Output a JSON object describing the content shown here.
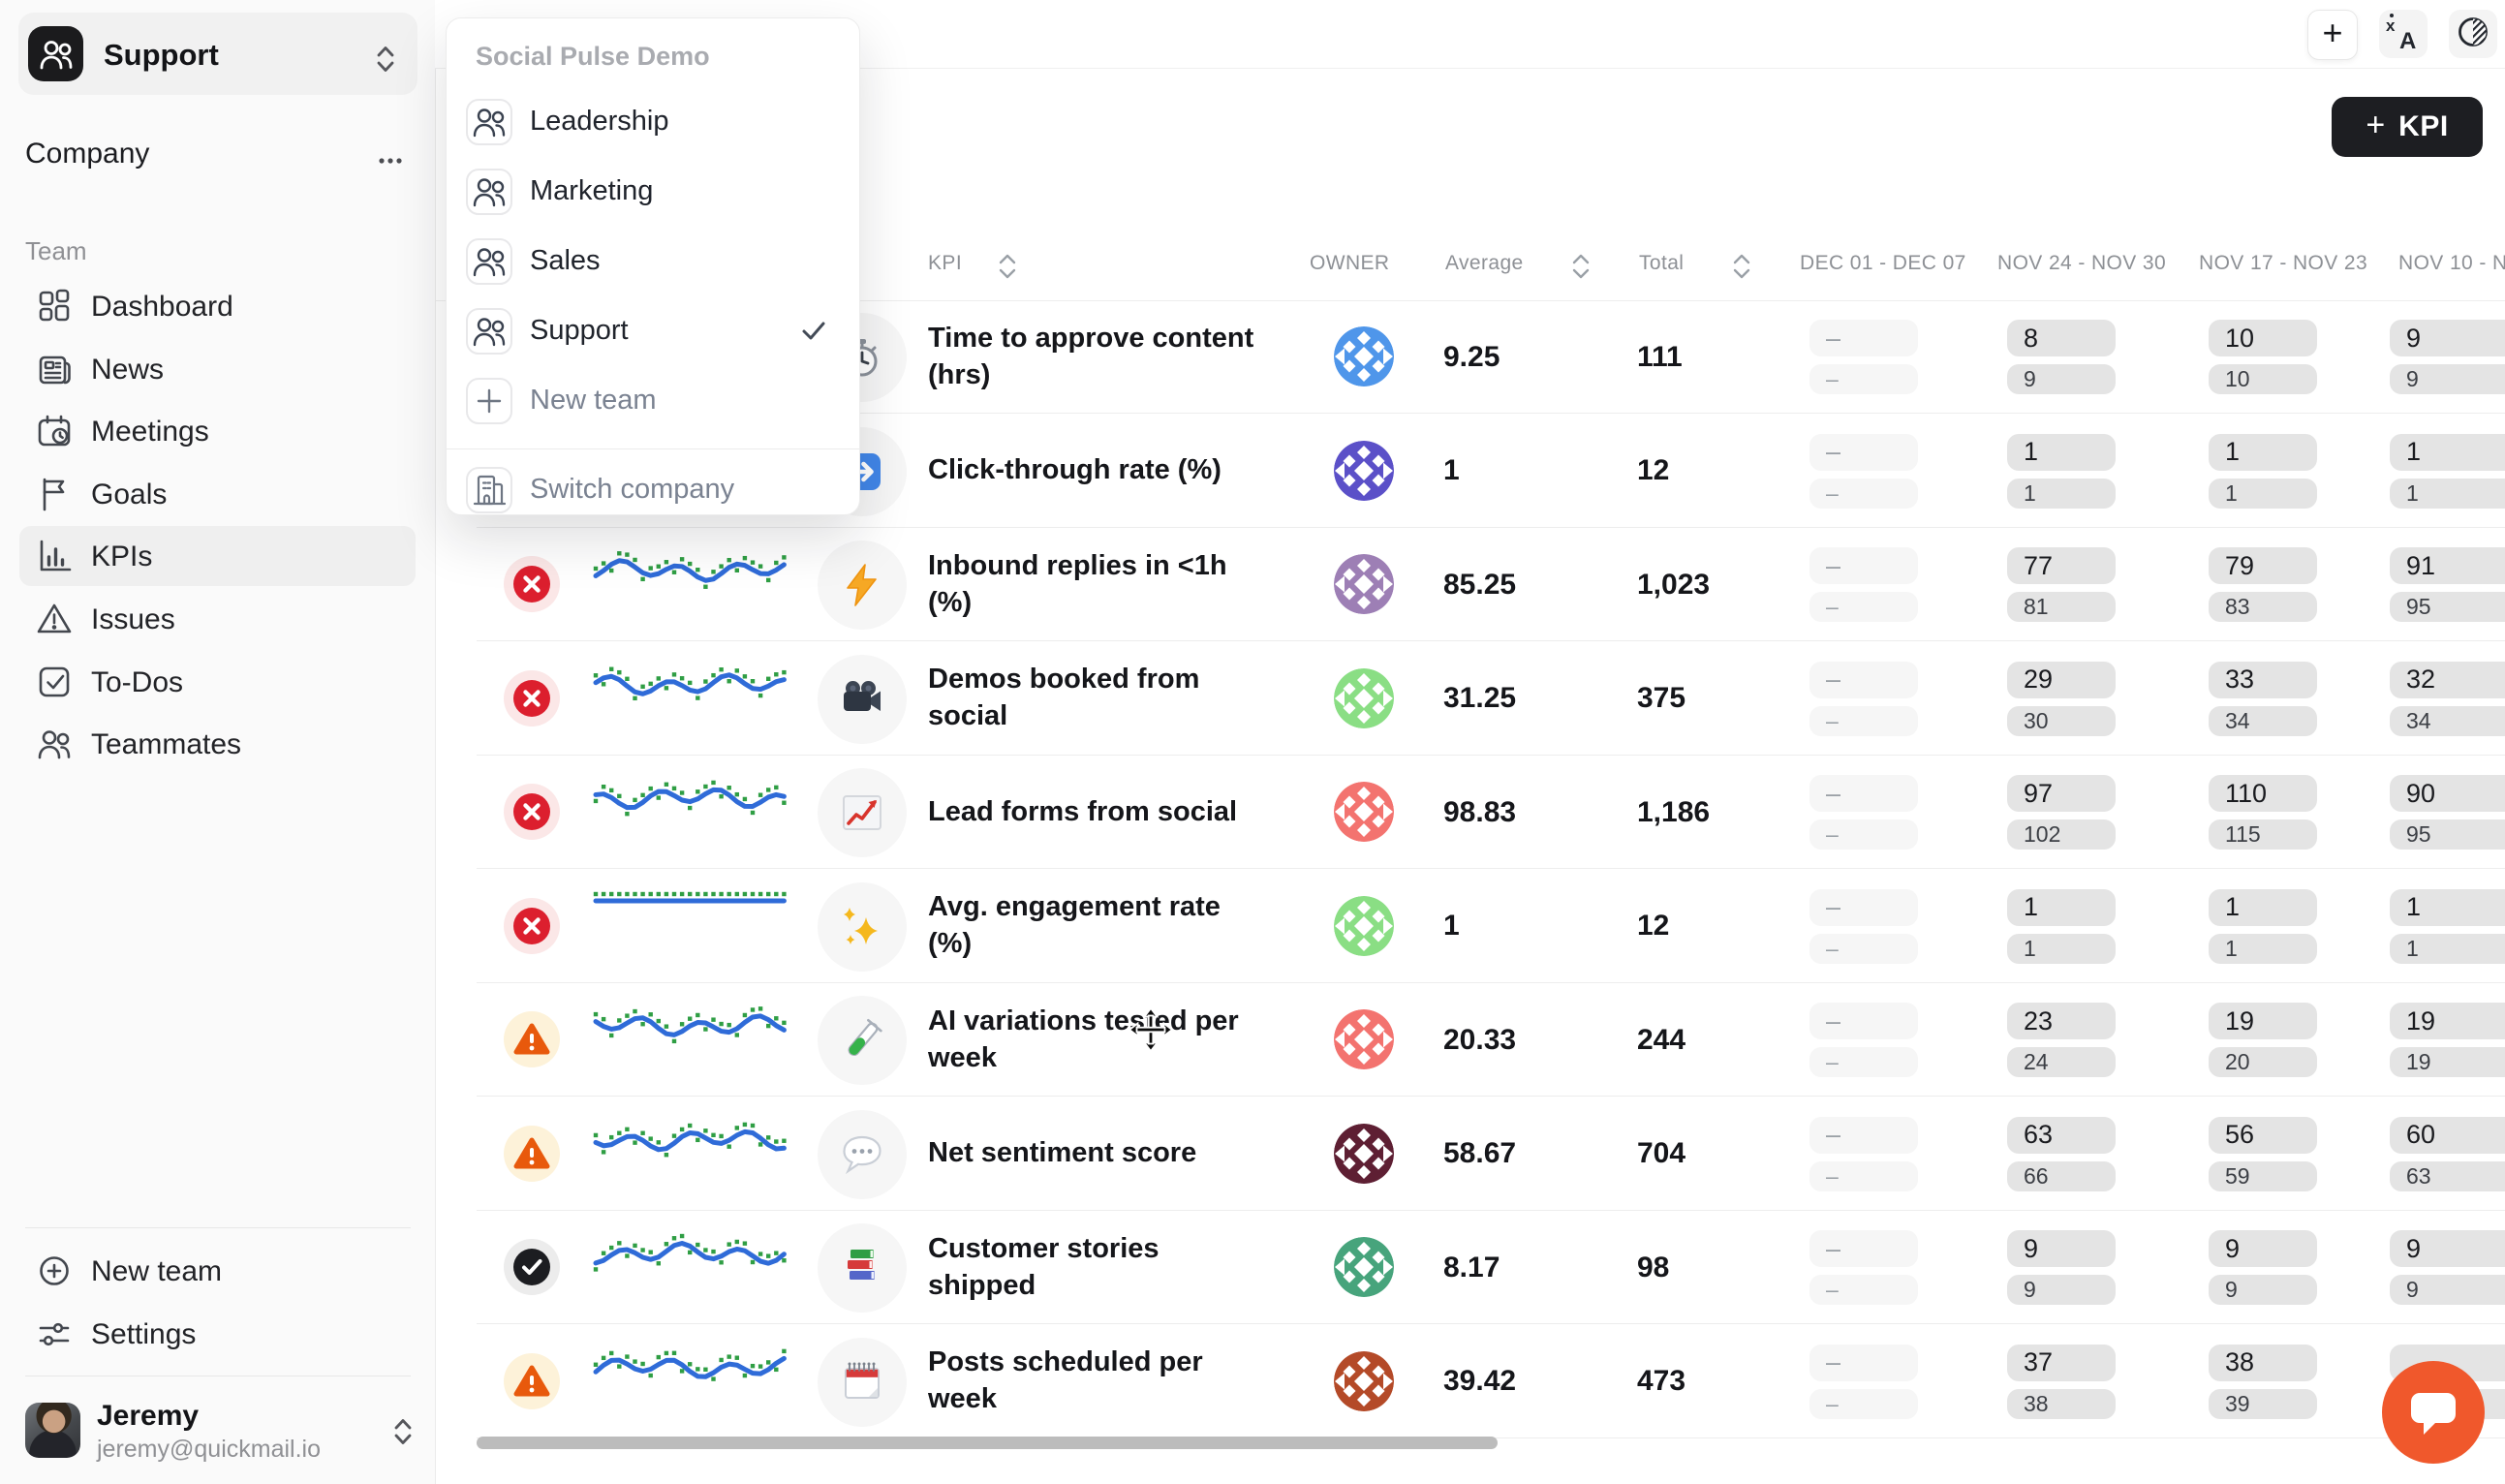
{
  "sidebar": {
    "team_switcher": {
      "label": "Support"
    },
    "company": {
      "label": "Company"
    },
    "team_section_label": "Team",
    "nav": [
      {
        "icon": "dashboard-icon",
        "label": "Dashboard",
        "active": false
      },
      {
        "icon": "news-icon",
        "label": "News",
        "active": false
      },
      {
        "icon": "meetings-icon",
        "label": "Meetings",
        "active": false
      },
      {
        "icon": "goals-icon",
        "label": "Goals",
        "active": false
      },
      {
        "icon": "kpis-icon",
        "label": "KPIs",
        "active": true
      },
      {
        "icon": "issues-icon",
        "label": "Issues",
        "active": false
      },
      {
        "icon": "todos-icon",
        "label": "To-Dos",
        "active": false
      },
      {
        "icon": "teammates-icon",
        "label": "Teammates",
        "active": false
      }
    ],
    "footer": {
      "new_team": "New team",
      "settings": "Settings"
    },
    "profile": {
      "name": "Jeremy",
      "email": "jeremy@quickmail.io"
    }
  },
  "team_dropdown": {
    "company_name": "Social Pulse Demo",
    "teams": [
      {
        "label": "Leadership",
        "selected": false
      },
      {
        "label": "Marketing",
        "selected": false
      },
      {
        "label": "Sales",
        "selected": false
      },
      {
        "label": "Support",
        "selected": true
      }
    ],
    "new_team_label": "New team",
    "switch_company_label": "Switch company"
  },
  "topbar": {
    "add_label": "+",
    "kpi_button_label": "KPI",
    "kpi_button_plus": "+"
  },
  "table": {
    "headers": {
      "kpi": "KPI",
      "owner": "OWNER",
      "average": "Average",
      "total": "Total"
    },
    "week_headers": [
      "DEC 01 - DEC 07",
      "NOV 24 - NOV 30",
      "NOV 17 - NOV 23",
      "NOV 10 - N"
    ],
    "empty_value": "–",
    "rows": [
      {
        "status": null,
        "sparkline": null,
        "icon": "stopwatch-icon",
        "name": "Time to approve content (hrs)",
        "owner_color": "#4f96ea",
        "average": "9.25",
        "total": "111",
        "weeks": [
          [
            "–",
            "–"
          ],
          [
            "8",
            "9"
          ],
          [
            "10",
            "10"
          ],
          [
            "9",
            "9"
          ]
        ]
      },
      {
        "status": null,
        "sparkline": null,
        "icon": "arrow-right-icon",
        "name": "Click-through rate (%)",
        "owner_color": "#5b50c8",
        "average": "1",
        "total": "12",
        "weeks": [
          [
            "–",
            "–"
          ],
          [
            "1",
            "1"
          ],
          [
            "1",
            "1"
          ],
          [
            "1",
            "1"
          ]
        ]
      },
      {
        "status": "off-track",
        "sparkline": "wavy",
        "icon": "lightning-icon",
        "name": "Inbound replies in <1h (%)",
        "owner_color": "#9d7fb5",
        "average": "85.25",
        "total": "1,023",
        "weeks": [
          [
            "–",
            "–"
          ],
          [
            "77",
            "81"
          ],
          [
            "79",
            "83"
          ],
          [
            "91",
            "95"
          ]
        ]
      },
      {
        "status": "off-track",
        "sparkline": "wavy",
        "icon": "movie-camera-icon",
        "name": "Demos booked from social",
        "owner_color": "#8ade84",
        "average": "31.25",
        "total": "375",
        "weeks": [
          [
            "–",
            "–"
          ],
          [
            "29",
            "30"
          ],
          [
            "33",
            "34"
          ],
          [
            "32",
            "34"
          ]
        ]
      },
      {
        "status": "off-track",
        "sparkline": "wavy",
        "icon": "chart-increasing-icon",
        "name": "Lead forms from social",
        "owner_color": "#f3736f",
        "average": "98.83",
        "total": "1,186",
        "weeks": [
          [
            "–",
            "–"
          ],
          [
            "97",
            "102"
          ],
          [
            "110",
            "115"
          ],
          [
            "90",
            "95"
          ]
        ]
      },
      {
        "status": "off-track",
        "sparkline": "flat",
        "icon": "sparkles-icon",
        "name": "Avg. engagement rate (%)",
        "owner_color": "#8ade84",
        "average": "1",
        "total": "12",
        "weeks": [
          [
            "–",
            "–"
          ],
          [
            "1",
            "1"
          ],
          [
            "1",
            "1"
          ],
          [
            "1",
            "1"
          ]
        ]
      },
      {
        "status": "at-risk",
        "sparkline": "wavy",
        "icon": "test-tube-icon",
        "name": "AI variations tested per week",
        "owner_color": "#f3736f",
        "average": "20.33",
        "total": "244",
        "weeks": [
          [
            "–",
            "–"
          ],
          [
            "23",
            "24"
          ],
          [
            "19",
            "20"
          ],
          [
            "19",
            "19"
          ]
        ]
      },
      {
        "status": "at-risk",
        "sparkline": "wavy",
        "icon": "speech-balloon-icon",
        "name": "Net sentiment score",
        "owner_color": "#5e1f33",
        "average": "58.67",
        "total": "704",
        "weeks": [
          [
            "–",
            "–"
          ],
          [
            "63",
            "66"
          ],
          [
            "56",
            "59"
          ],
          [
            "60",
            "63"
          ]
        ]
      },
      {
        "status": "on-track",
        "sparkline": "wavy",
        "icon": "books-icon",
        "name": "Customer stories shipped",
        "owner_color": "#47a47c",
        "average": "8.17",
        "total": "98",
        "weeks": [
          [
            "–",
            "–"
          ],
          [
            "9",
            "9"
          ],
          [
            "9",
            "9"
          ],
          [
            "9",
            "9"
          ]
        ]
      },
      {
        "status": "at-risk",
        "sparkline": "wavy",
        "icon": "spiral-calendar-icon",
        "name": "Posts scheduled per week",
        "owner_color": "#b44a28",
        "average": "39.42",
        "total": "473",
        "weeks": [
          [
            "–",
            "–"
          ],
          [
            "37",
            "38"
          ],
          [
            "38",
            "39"
          ],
          [
            "",
            ""
          ]
        ]
      }
    ]
  },
  "status_colors": {
    "off-track": "#dc1f2e",
    "at-risk": "#e8590c",
    "on-track": "#1c1d21"
  },
  "accent_colors": {
    "sparkline_line": "#2f6bd8",
    "sparkline_dots": "#2f9e44",
    "chat_widget": "#f0582c"
  }
}
